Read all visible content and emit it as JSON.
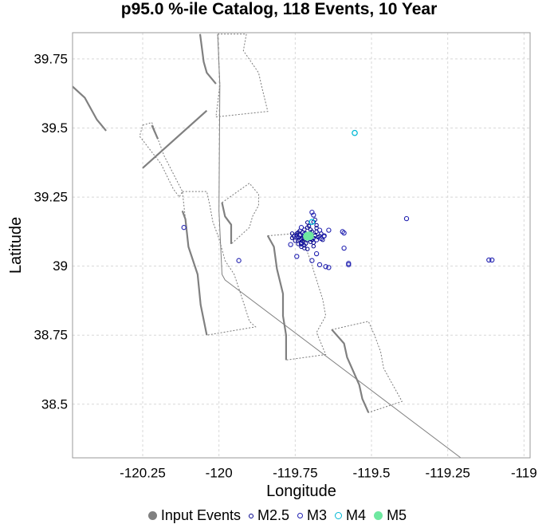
{
  "chart_data": {
    "type": "scatter",
    "title": "p95.0 %-ile Catalog, 118 Events, 10 Year",
    "xlabel": "Longitude",
    "ylabel": "Latitude",
    "xlim": [
      -120.48,
      -118.98
    ],
    "ylim": [
      38.306,
      39.845
    ],
    "x_ticks": [
      -120.25,
      -120,
      -119.75,
      -119.5,
      -119.25,
      -119
    ],
    "x_tick_labels": [
      "-120.25",
      "-120",
      "-119.75",
      "-119.5",
      "-119.25",
      "-119"
    ],
    "y_ticks": [
      38.5,
      38.75,
      39,
      39.25,
      39.5,
      39.75
    ],
    "y_tick_labels": [
      "38.5",
      "38.75",
      "39",
      "39.25",
      "39.5",
      "39.75"
    ],
    "grid": true,
    "legend_position": "bottom",
    "legend": [
      {
        "label": "Input Events",
        "symbol": "filled",
        "color": "#808080"
      },
      {
        "label": "M2.5",
        "symbol": "ring-small",
        "color": "#00008b"
      },
      {
        "label": "M3",
        "symbol": "ring",
        "color": "#2020b0"
      },
      {
        "label": "M4",
        "symbol": "ring",
        "color": "#00b8d4"
      },
      {
        "label": "M5",
        "symbol": "filled",
        "color": "#6ee8a0"
      }
    ],
    "fault_lines": [
      [
        [
          -120.004,
          39.84
        ],
        [
          -119.997,
          39.655
        ],
        [
          -120.0,
          39.2
        ],
        [
          -119.99,
          38.97
        ],
        [
          -119.98,
          38.95
        ],
        [
          -119.2,
          38.3
        ]
      ],
      [
        [
          -120.48,
          39.65
        ],
        [
          -120.44,
          39.61
        ],
        [
          -120.4,
          39.53
        ],
        [
          -120.37,
          39.49
        ]
      ],
      [
        [
          -120.25,
          39.355
        ],
        [
          -120.04,
          39.563
        ]
      ],
      [
        [
          -120.062,
          39.84
        ],
        [
          -120.05,
          39.74
        ],
        [
          -120.04,
          39.7
        ],
        [
          -120.01,
          39.66
        ]
      ],
      [
        [
          -120.2,
          39.46
        ],
        [
          -120.22,
          39.51
        ]
      ],
      [
        [
          -120.12,
          39.2
        ],
        [
          -120.11,
          39.17
        ],
        [
          -120.1,
          39.07
        ],
        [
          -120.07,
          38.97
        ],
        [
          -120.06,
          38.86
        ],
        [
          -120.04,
          38.75
        ]
      ],
      [
        [
          -119.99,
          39.23
        ],
        [
          -119.98,
          39.18
        ],
        [
          -119.96,
          39.15
        ],
        [
          -119.96,
          39.08
        ]
      ],
      [
        [
          -119.84,
          39.11
        ],
        [
          -119.82,
          39.07
        ],
        [
          -119.81,
          38.99
        ],
        [
          -119.79,
          38.9
        ],
        [
          -119.79,
          38.82
        ],
        [
          -119.78,
          38.75
        ],
        [
          -119.78,
          38.66
        ]
      ],
      [
        [
          -119.63,
          38.77
        ],
        [
          -119.59,
          38.72
        ],
        [
          -119.58,
          38.67
        ],
        [
          -119.56,
          38.62
        ],
        [
          -119.54,
          38.57
        ],
        [
          -119.53,
          38.52
        ],
        [
          -119.51,
          38.47
        ]
      ]
    ],
    "fault_polygons": [
      [
        [
          -120.004,
          39.84
        ],
        [
          -119.91,
          39.84
        ],
        [
          -119.92,
          39.78
        ],
        [
          -119.87,
          39.7
        ],
        [
          -119.86,
          39.65
        ],
        [
          -119.84,
          39.56
        ],
        [
          -120.01,
          39.54
        ],
        [
          -119.997,
          39.655
        ]
      ],
      [
        [
          -120.25,
          39.51
        ],
        [
          -120.22,
          39.52
        ],
        [
          -120.2,
          39.46
        ],
        [
          -120.18,
          39.4
        ],
        [
          -120.12,
          39.27
        ],
        [
          -120.13,
          39.25
        ],
        [
          -120.15,
          39.28
        ],
        [
          -120.19,
          39.37
        ],
        [
          -120.26,
          39.47
        ]
      ],
      [
        [
          -120.12,
          39.27
        ],
        [
          -120.04,
          39.27
        ],
        [
          -120.03,
          39.22
        ],
        [
          -120.02,
          39.16
        ],
        [
          -120.0,
          39.1
        ],
        [
          -119.99,
          39.06
        ],
        [
          -119.98,
          39.02
        ],
        [
          -119.95,
          38.97
        ],
        [
          -119.92,
          38.87
        ],
        [
          -119.9,
          38.8
        ],
        [
          -119.88,
          38.78
        ],
        [
          -120.04,
          38.75
        ],
        [
          -120.06,
          38.86
        ],
        [
          -120.07,
          38.97
        ],
        [
          -120.1,
          39.07
        ],
        [
          -120.11,
          39.17
        ]
      ],
      [
        [
          -119.99,
          39.23
        ],
        [
          -119.9,
          39.3
        ],
        [
          -119.87,
          39.26
        ],
        [
          -119.87,
          39.22
        ],
        [
          -119.89,
          39.18
        ],
        [
          -119.9,
          39.14
        ],
        [
          -119.92,
          39.12
        ],
        [
          -119.96,
          39.08
        ],
        [
          -119.96,
          39.15
        ],
        [
          -119.98,
          39.18
        ]
      ],
      [
        [
          -119.84,
          39.11
        ],
        [
          -119.73,
          39.12
        ],
        [
          -119.72,
          39.08
        ],
        [
          -119.7,
          39.02
        ],
        [
          -119.68,
          38.95
        ],
        [
          -119.66,
          38.88
        ],
        [
          -119.65,
          38.82
        ],
        [
          -119.68,
          38.76
        ],
        [
          -119.65,
          38.68
        ],
        [
          -119.78,
          38.66
        ],
        [
          -119.78,
          38.75
        ],
        [
          -119.79,
          38.82
        ],
        [
          -119.79,
          38.9
        ],
        [
          -119.81,
          38.99
        ],
        [
          -119.82,
          39.07
        ]
      ],
      [
        [
          -119.63,
          38.77
        ],
        [
          -119.51,
          38.8
        ],
        [
          -119.49,
          38.75
        ],
        [
          -119.47,
          38.69
        ],
        [
          -119.46,
          38.63
        ],
        [
          -119.43,
          38.57
        ],
        [
          -119.4,
          38.51
        ],
        [
          -119.51,
          38.47
        ],
        [
          -119.53,
          38.52
        ],
        [
          -119.54,
          38.57
        ],
        [
          -119.56,
          38.62
        ],
        [
          -119.58,
          38.67
        ],
        [
          -119.59,
          38.72
        ]
      ]
    ],
    "series": [
      {
        "name": "M2.5",
        "color": "#00008b",
        "x": [
          -119.735,
          -119.72,
          -119.705,
          -119.69,
          -119.715,
          -119.73,
          -119.7,
          -119.725,
          -119.685,
          -119.74,
          -119.71,
          -119.695,
          -119.745,
          -119.72,
          -119.68,
          -119.73,
          -119.7,
          -119.715,
          -119.69,
          -119.735,
          -119.7,
          -119.725,
          -119.71,
          -119.675,
          -119.74,
          -119.68,
          -119.72,
          -119.73,
          -119.665,
          -119.755,
          -119.72,
          -119.69,
          -119.705,
          -119.68,
          -119.74,
          -119.71,
          -119.7,
          -119.74,
          -119.66,
          -119.75,
          -119.71,
          -119.69,
          -119.655,
          -119.7,
          -119.735,
          -119.725,
          -119.685,
          -119.76,
          -119.72,
          -119.695,
          -119.685,
          -119.67,
          -119.745,
          -119.76
        ],
        "y": [
          39.112,
          39.108,
          39.106,
          39.102,
          39.118,
          39.098,
          39.118,
          39.122,
          39.112,
          39.105,
          39.095,
          39.095,
          39.118,
          39.132,
          39.125,
          39.085,
          39.132,
          39.082,
          39.085,
          39.128,
          39.088,
          39.09,
          39.14,
          39.105,
          39.092,
          39.138,
          39.075,
          39.07,
          39.118,
          39.108,
          39.065,
          39.072,
          39.145,
          39.148,
          39.08,
          39.062,
          39.12,
          39.122,
          39.095,
          39.092,
          39.158,
          39.16,
          39.108,
          39.098,
          39.095,
          39.102,
          39.11,
          39.102,
          39.098,
          39.125,
          39.168,
          39.108,
          39.112,
          39.118
        ]
      },
      {
        "name": "M3",
        "color": "#2020b0",
        "x": [
          -119.695,
          -119.69,
          -119.73,
          -119.67,
          -119.745,
          -119.73,
          -119.68,
          -119.655,
          -119.595,
          -119.59,
          -119.64,
          -119.59,
          -119.575,
          -119.575,
          -119.665,
          -119.65,
          -119.385,
          -119.115,
          -119.105,
          -120.115,
          -119.935,
          -119.695,
          -119.67,
          -119.64,
          -119.745,
          -119.72,
          -119.765,
          -119.68
        ],
        "y": [
          39.195,
          39.185,
          39.14,
          39.13,
          39.035,
          39.08,
          39.095,
          39.11,
          39.125,
          39.12,
          39.13,
          39.065,
          39.01,
          39.005,
          39.1,
          38.998,
          39.172,
          39.022,
          39.022,
          39.14,
          39.02,
          39.02,
          39.005,
          38.995,
          39.108,
          39.115,
          39.078,
          39.045
        ]
      },
      {
        "name": "M4",
        "color": "#00b8d4",
        "x": [
          -119.555,
          -119.695
        ],
        "y": [
          39.482,
          39.16
        ]
      },
      {
        "name": "M5",
        "color": "#6ee8a0",
        "x": [
          -119.71,
          -119.703
        ],
        "y": [
          39.108,
          39.11
        ]
      }
    ]
  }
}
